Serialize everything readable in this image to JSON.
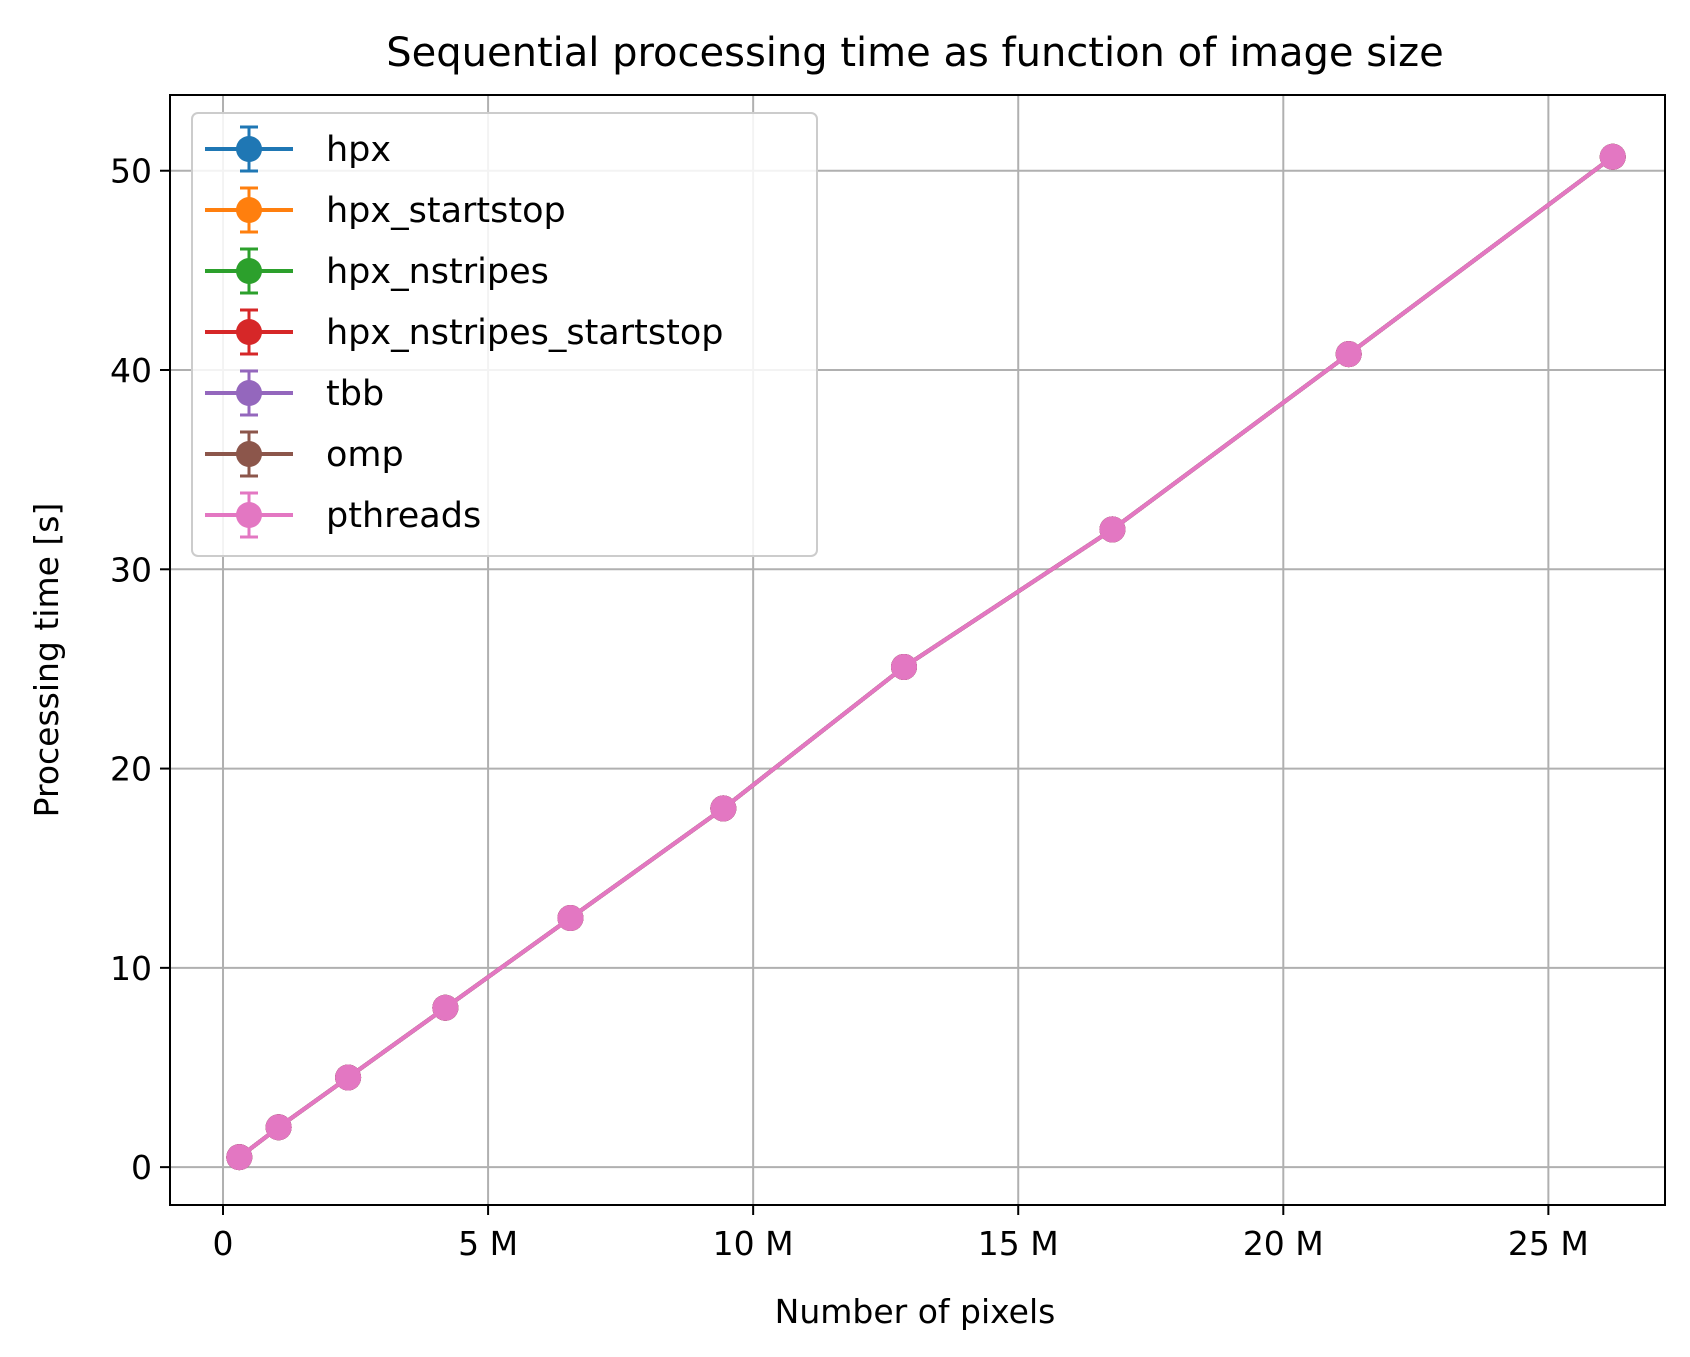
{
  "chart_data": {
    "type": "line",
    "title": "Sequential processing time as function of image size",
    "xlabel": "Number of pixels",
    "ylabel": "Processing time [s]",
    "xlim": [
      -1000000,
      27200000
    ],
    "ylim": [
      -1.9,
      53.8
    ],
    "xticks": [
      0,
      5000000,
      10000000,
      15000000,
      20000000,
      25000000
    ],
    "xtick_labels": [
      "0",
      "5 M",
      "10 M",
      "15 M",
      "20 M",
      "25 M"
    ],
    "yticks": [
      0,
      10,
      20,
      30,
      40,
      50
    ],
    "ytick_labels": [
      "0",
      "10",
      "20",
      "30",
      "40",
      "50"
    ],
    "grid": true,
    "legend_position": "top-left",
    "x": [
      307200,
      1048576,
      2359296,
      4194304,
      6553600,
      9437184,
      12845056,
      16777216,
      21233664,
      26214400
    ],
    "series": [
      {
        "name": "hpx",
        "color": "#1f77b4",
        "values": [
          0.5,
          2.0,
          4.5,
          8.0,
          12.5,
          18.0,
          25.1,
          32.0,
          40.8,
          50.7
        ]
      },
      {
        "name": "hpx_startstop",
        "color": "#ff7f0e",
        "values": [
          0.5,
          2.0,
          4.5,
          8.0,
          12.5,
          18.0,
          25.1,
          32.0,
          40.8,
          50.7
        ]
      },
      {
        "name": "hpx_nstripes",
        "color": "#2ca02c",
        "values": [
          0.5,
          2.0,
          4.5,
          8.0,
          12.5,
          18.0,
          25.1,
          32.0,
          40.8,
          50.7
        ]
      },
      {
        "name": "hpx_nstripes_startstop",
        "color": "#d62728",
        "values": [
          0.5,
          2.0,
          4.5,
          8.0,
          12.5,
          18.0,
          25.1,
          32.0,
          40.8,
          50.7
        ]
      },
      {
        "name": "tbb",
        "color": "#9467bd",
        "values": [
          0.5,
          2.0,
          4.5,
          8.0,
          12.5,
          18.0,
          25.1,
          32.0,
          40.8,
          50.7
        ]
      },
      {
        "name": "omp",
        "color": "#8c564b",
        "values": [
          0.5,
          2.0,
          4.5,
          8.0,
          12.5,
          18.0,
          25.1,
          32.0,
          40.8,
          50.7
        ]
      },
      {
        "name": "pthreads",
        "color": "#e377c2",
        "values": [
          0.5,
          2.0,
          4.5,
          8.0,
          12.5,
          18.0,
          25.1,
          32.0,
          40.8,
          50.7
        ]
      }
    ]
  }
}
